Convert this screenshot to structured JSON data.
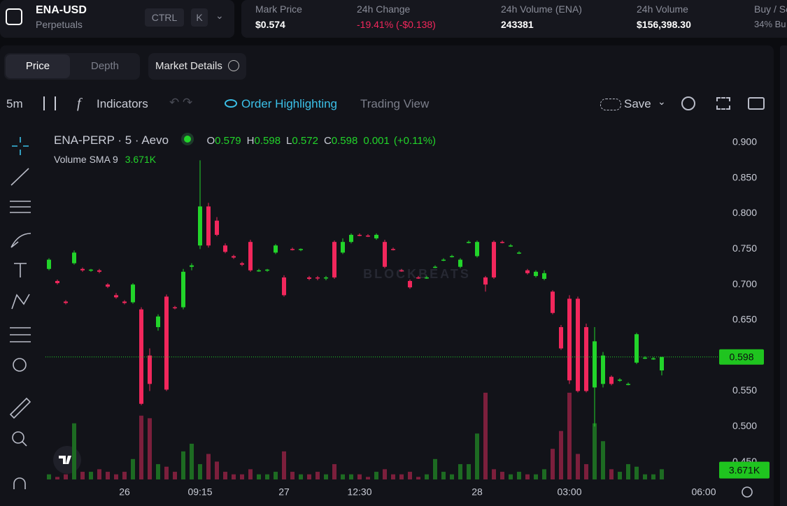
{
  "header": {
    "symbol": "ENA-USD",
    "subtitle": "Perpetuals",
    "keys": [
      "CTRL",
      "K"
    ]
  },
  "stats": [
    {
      "label": "Mark Price",
      "value": "$0.574"
    },
    {
      "label": "24h Change",
      "value": "-19.41% (-$0.138)"
    },
    {
      "label": "24h Volume (ENA)",
      "value": "243381"
    },
    {
      "label": "24h Volume",
      "value": "$156,398.30"
    },
    {
      "label": "Buy / Se",
      "value": "34% Bu"
    }
  ],
  "tabs": [
    "Price",
    "Depth"
  ],
  "market_details": "Market Details",
  "toolbar": {
    "interval": "5m",
    "indicators": "Indicators",
    "order_highlighting": "Order Highlighting",
    "trading_view": "Trading View",
    "save": "Save"
  },
  "chart_data": {
    "type": "candlestick",
    "title": "ENA-PERP · 5 · Aevo",
    "watermark": "BLOCKBEATS",
    "legend_ohlc": [
      {
        "label": "O",
        "value": 0.579
      },
      {
        "label": "H",
        "value": 0.598
      },
      {
        "label": "L",
        "value": 0.572
      },
      {
        "label": "C",
        "value": 0.598
      }
    ],
    "change": 0.001,
    "change_pct": "(+0.11%)",
    "volume_sma": {
      "name": "Volume SMA 9",
      "value": 3.671,
      "label": "3.671K"
    },
    "last_price": 0.598,
    "up_color": "#22d42a",
    "down_color": "#f2275c",
    "up_volume_color": "#1d6b22",
    "down_volume_color": "#7c1f3c",
    "ylim": [
      0.4215,
      0.9236
    ],
    "yticks": [
      {
        "value": 0.9,
        "label": "0.900"
      },
      {
        "value": 0.85,
        "label": "0.850"
      },
      {
        "value": 0.8,
        "label": "0.800"
      },
      {
        "value": 0.75,
        "label": "0.750"
      },
      {
        "value": 0.7,
        "label": "0.700"
      },
      {
        "value": 0.65,
        "label": "0.650"
      },
      {
        "value": 0.6,
        "label": "0.600"
      },
      {
        "value": 0.55,
        "label": "0.550"
      },
      {
        "value": 0.5,
        "label": "0.500"
      },
      {
        "value": 0.45,
        "label": "0.450"
      }
    ],
    "volume_lim": [
      0,
      40
    ],
    "grid": false,
    "categories": [
      null,
      null,
      null,
      null,
      null,
      null,
      null,
      null,
      null,
      "26",
      null,
      null,
      null,
      null,
      null,
      null,
      null,
      null,
      "09:15",
      null,
      null,
      null,
      null,
      null,
      null,
      null,
      null,
      null,
      "27",
      null,
      null,
      null,
      null,
      null,
      null,
      null,
      null,
      "12:30",
      null,
      null,
      null,
      null,
      null,
      null,
      null,
      null,
      null,
      null,
      null,
      null,
      null,
      "28",
      null,
      null,
      null,
      null,
      null,
      null,
      null,
      null,
      null,
      null,
      "03:00",
      null,
      null,
      null,
      null,
      null,
      null,
      null,
      null,
      null,
      null,
      null,
      null,
      null,
      null,
      null,
      "06:00"
    ],
    "open": [
      0.722,
      0.705,
      0.676,
      0.73,
      0.722,
      0.72,
      0.72,
      0.7,
      0.685,
      0.676,
      0.675,
      0.665,
      0.6,
      0.64,
      0.683,
      0.668,
      0.668,
      0.725,
      0.755,
      0.81,
      0.79,
      0.755,
      0.74,
      0.73,
      0.76,
      0.72,
      0.72,
      0.745,
      0.71,
      0.75,
      0.749,
      0.71,
      0.71,
      0.71,
      0.76,
      0.745,
      0.76,
      0.77,
      0.769,
      0.765,
      0.76,
      0.75,
      0.72,
      0.705,
      0.71,
      0.71,
      0.725,
      0.735,
      0.74,
      0.725,
      0.76,
      0.74,
      0.71,
      0.76,
      0.76,
      0.755,
      0.745,
      0.72,
      0.712,
      0.708,
      0.69,
      0.64,
      0.68,
      0.68,
      0.64,
      0.555,
      0.56,
      0.57,
      0.565,
      0.56,
      0.59,
      0.597,
      0.596,
      0.579,
      null,
      null,
      null,
      null,
      null
    ],
    "high": [
      0.737,
      0.707,
      0.678,
      0.748,
      0.724,
      0.722,
      0.722,
      0.702,
      0.688,
      0.678,
      0.702,
      0.668,
      0.61,
      0.658,
      0.686,
      0.67,
      0.722,
      0.73,
      0.875,
      0.815,
      0.795,
      0.758,
      0.742,
      0.732,
      0.763,
      0.722,
      0.722,
      0.757,
      0.713,
      0.752,
      0.751,
      0.712,
      0.712,
      0.712,
      0.762,
      0.765,
      0.772,
      0.772,
      0.771,
      0.772,
      0.763,
      0.752,
      0.722,
      0.707,
      0.712,
      0.712,
      0.727,
      0.737,
      0.742,
      0.737,
      0.762,
      0.762,
      0.712,
      0.762,
      0.762,
      0.757,
      0.747,
      0.722,
      0.72,
      0.72,
      0.692,
      0.643,
      0.685,
      0.683,
      0.645,
      0.64,
      0.605,
      0.572,
      0.568,
      0.562,
      0.632,
      0.599,
      0.598,
      0.598,
      null,
      null,
      null,
      null,
      null
    ],
    "low": [
      0.72,
      0.7,
      0.672,
      0.728,
      0.718,
      0.718,
      0.716,
      0.695,
      0.68,
      0.672,
      0.673,
      0.53,
      0.55,
      0.635,
      0.55,
      0.665,
      0.665,
      0.72,
      0.75,
      0.752,
      0.768,
      0.744,
      0.736,
      0.726,
      0.718,
      0.718,
      0.718,
      0.743,
      0.683,
      0.748,
      0.747,
      0.706,
      0.706,
      0.706,
      0.708,
      0.743,
      0.758,
      0.768,
      0.767,
      0.763,
      0.723,
      0.748,
      0.718,
      0.694,
      0.708,
      0.708,
      0.723,
      0.733,
      0.738,
      0.723,
      0.758,
      0.738,
      0.69,
      0.708,
      0.758,
      0.753,
      0.743,
      0.714,
      0.71,
      0.706,
      0.658,
      0.608,
      0.56,
      0.548,
      0.548,
      0.5,
      0.555,
      0.558,
      0.563,
      0.558,
      0.588,
      0.595,
      0.594,
      0.572,
      null,
      null,
      null,
      null,
      null
    ],
    "close": [
      0.735,
      0.702,
      0.674,
      0.745,
      0.72,
      0.721,
      0.718,
      0.697,
      0.682,
      0.674,
      0.7,
      0.532,
      0.56,
      0.655,
      0.552,
      0.667,
      0.718,
      0.727,
      0.81,
      0.755,
      0.77,
      0.746,
      0.738,
      0.728,
      0.72,
      0.72,
      0.721,
      0.755,
      0.685,
      0.749,
      0.75,
      0.708,
      0.709,
      0.71,
      0.71,
      0.76,
      0.77,
      0.769,
      0.768,
      0.77,
      0.725,
      0.749,
      0.719,
      0.696,
      0.709,
      0.71,
      0.725,
      0.735,
      0.74,
      0.735,
      0.76,
      0.76,
      0.7,
      0.71,
      0.759,
      0.755,
      0.745,
      0.716,
      0.718,
      0.716,
      0.66,
      0.61,
      0.565,
      0.55,
      0.55,
      0.62,
      0.6,
      0.56,
      0.566,
      0.56,
      0.63,
      0.597,
      0.596,
      0.598,
      null,
      null,
      null,
      null,
      null
    ],
    "volume": [
      2,
      1,
      2,
      22,
      3,
      3,
      4,
      3,
      2,
      3,
      8,
      25,
      24,
      6,
      5,
      3,
      11,
      14,
      6,
      10,
      7,
      3,
      2,
      2,
      4,
      2,
      2,
      3,
      11,
      3,
      2,
      2,
      3,
      2,
      6,
      2,
      2,
      2,
      1,
      3,
      4,
      2,
      2,
      3,
      1,
      2,
      8,
      3,
      2,
      6,
      6,
      18,
      34,
      4,
      3,
      2,
      3,
      2,
      2,
      4,
      12,
      19,
      34,
      10,
      6,
      22,
      15,
      4,
      3,
      6,
      5,
      2,
      2,
      4,
      null,
      null,
      null,
      null,
      null
    ]
  }
}
